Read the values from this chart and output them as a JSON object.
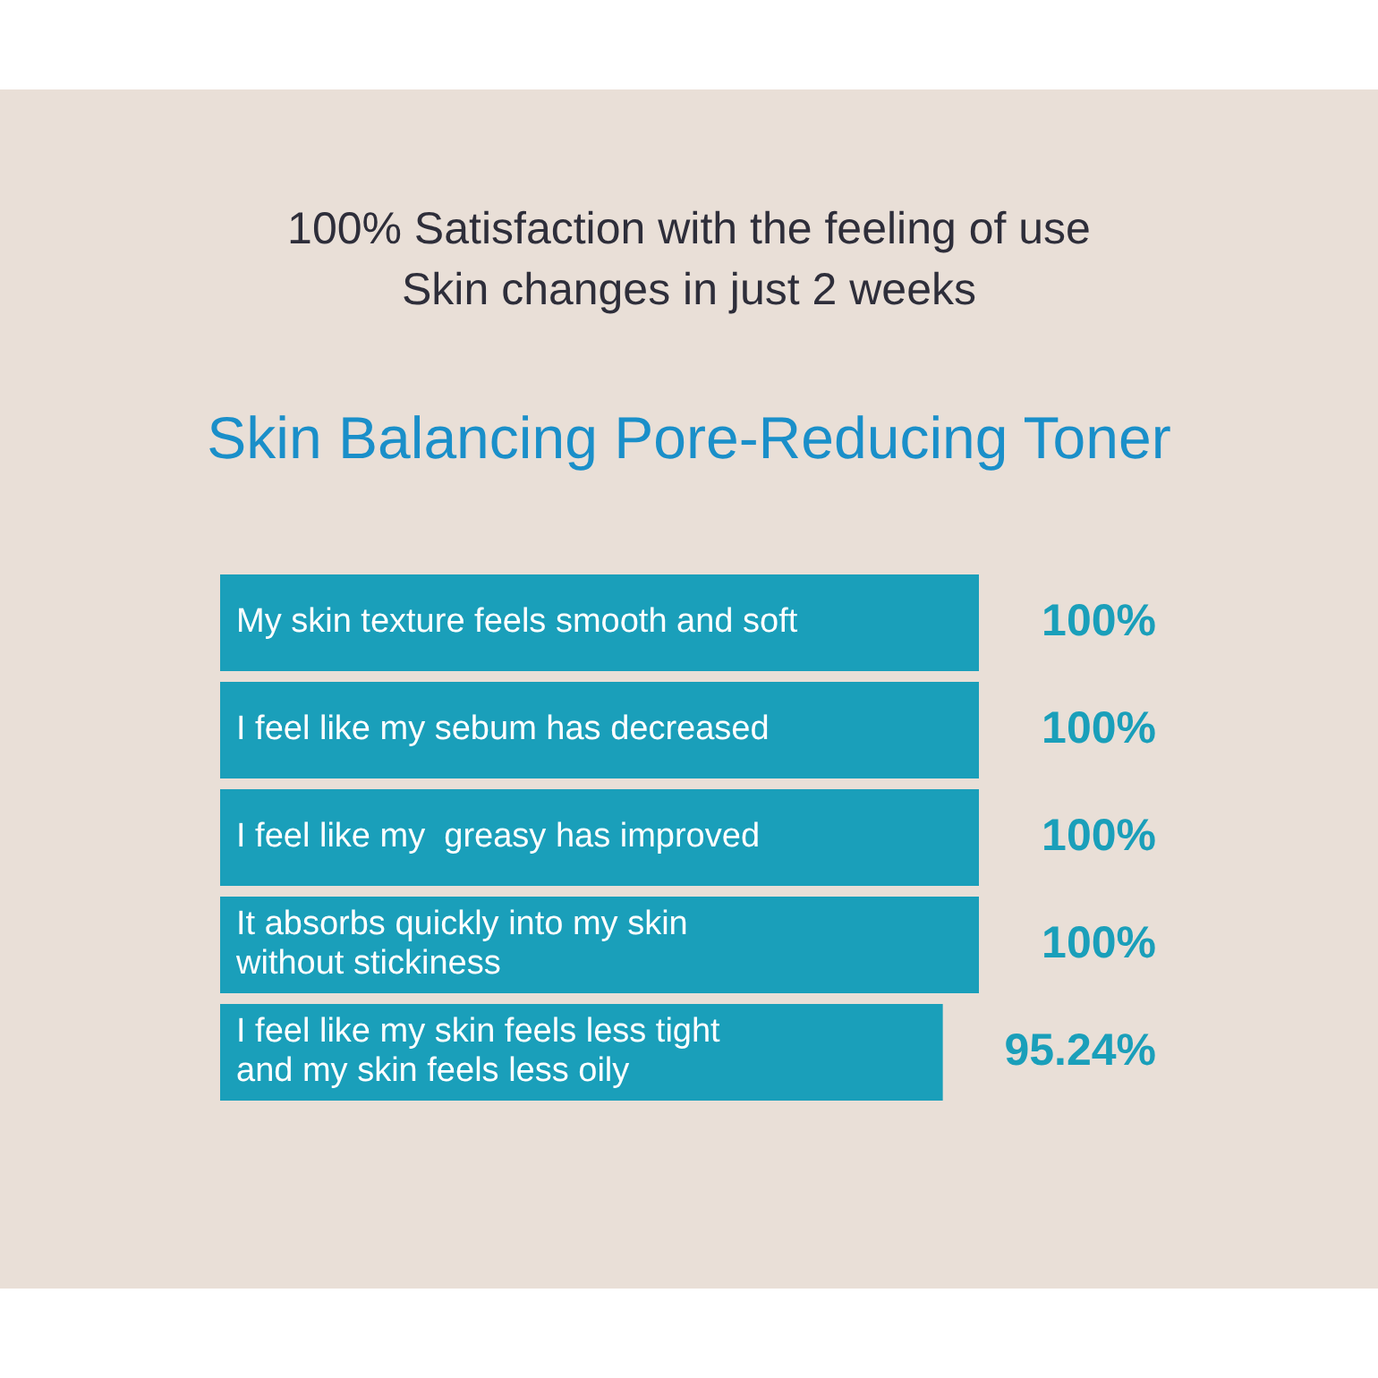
{
  "chart_data": {
    "type": "bar",
    "orientation": "horizontal",
    "title": "Skin Balancing Pore-Reducing Toner",
    "annotations": [
      "100% Satisfaction with the feeling of use",
      "Skin changes in just 2 weeks"
    ],
    "categories": [
      "My skin texture feels smooth and soft",
      "I feel like my sebum has decreased",
      "I feel like my  greasy has improved",
      "It absorbs quickly into my skin without stickiness",
      "I feel like my skin feels less tight and my skin feels less oily"
    ],
    "values": [
      100,
      100,
      100,
      100,
      95.24
    ],
    "value_labels": [
      "100%",
      "100%",
      "100%",
      "100%",
      "95.24%"
    ],
    "color": "#1a9fba",
    "xlim": [
      0,
      100
    ],
    "tick_labels": false,
    "legend": false
  }
}
